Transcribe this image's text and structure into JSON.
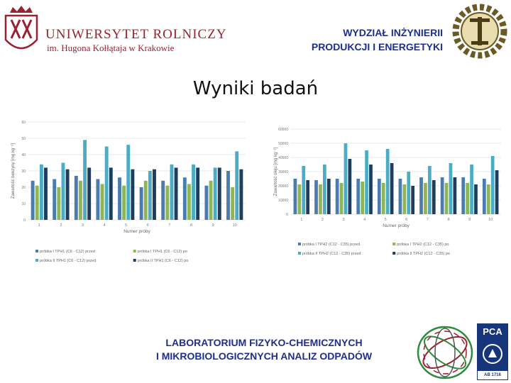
{
  "header": {
    "university_name": "UNIWERSYTET ROLNICZY",
    "university_sub": "im. Hugona Kołłątaja w Krakowie",
    "faculty_line1": "WYDZIAŁ INŻYNIERII",
    "faculty_line2": "PRODUKCJI I ENERGETYKI"
  },
  "title": "Wyniki badań",
  "footer": {
    "lab_line1": "LABORATORIUM FIZYKO-CHEMICZNYCH",
    "lab_line2": "I MIKROBIOLOGICZNYCH ANALIZ ODPADÓW",
    "pca_label": "PCA",
    "pca_number": "AB 1716"
  },
  "colors": {
    "series1": "#4a7cb0",
    "series2": "#8fb654",
    "series3": "#4bacc6",
    "series4": "#1f3e5e",
    "accent_red": "#9a2230",
    "accent_blue": "#1e2f8a"
  },
  "chart_data": [
    {
      "type": "bar",
      "categories": [
        "1",
        "2",
        "3",
        "4",
        "5",
        "6",
        "7",
        "8",
        "9",
        "10"
      ],
      "xlabel": "Numer próby",
      "ylabel": "Zawartość benzyny [mg kg⁻¹]",
      "ylim": [
        0,
        60
      ],
      "yticks": [
        0,
        10,
        20,
        30,
        40,
        50,
        60
      ],
      "grid": true,
      "legend": "bottom",
      "series": [
        {
          "name": "próbka I TPH1 (C6 - C12) przed",
          "values": [
            24,
            25,
            27,
            25,
            26,
            20,
            24,
            26,
            21,
            30
          ]
        },
        {
          "name": "próbka I TPH1 (C6 - C12) po",
          "values": [
            21,
            20,
            24,
            22,
            21,
            24,
            21,
            22,
            24,
            20
          ]
        },
        {
          "name": "próbka II TPH1 (C6 - C12) przed",
          "values": [
            34,
            35,
            49,
            45,
            46,
            30,
            34,
            34,
            32,
            42
          ]
        },
        {
          "name": "próbka II TPH1 (C6 - C12) po",
          "values": [
            32,
            31,
            32,
            32,
            31,
            31,
            32,
            32,
            32,
            31
          ]
        }
      ]
    },
    {
      "type": "bar",
      "categories": [
        "1",
        "2",
        "3",
        "4",
        "5",
        "6",
        "7",
        "8",
        "9",
        "10"
      ],
      "xlabel": "Numer próby",
      "ylabel": "Zawartość oleju [mg kg⁻¹]",
      "ylim": [
        0,
        60000
      ],
      "yticks": [
        0,
        10000,
        20000,
        30000,
        40000,
        50000,
        60000
      ],
      "grid": true,
      "legend": "bottom",
      "series": [
        {
          "name": "próbka I TPH2 (C12 - C35) przed",
          "values": [
            25000,
            24000,
            25000,
            25000,
            25000,
            25000,
            26000,
            26000,
            26000,
            25000
          ]
        },
        {
          "name": "próbka I TPH2 (C12 - C35) po",
          "values": [
            21000,
            21000,
            22000,
            23000,
            22000,
            21000,
            22000,
            22000,
            22000,
            21000
          ]
        },
        {
          "name": "próbka II TPH2 (C12 - C35) przed",
          "values": [
            34000,
            35000,
            50000,
            45000,
            46000,
            30000,
            34000,
            36000,
            35000,
            41000
          ]
        },
        {
          "name": "próbka II TPH2 (C12 - C35) po",
          "values": [
            24000,
            25000,
            39000,
            35000,
            36000,
            20000,
            24000,
            26000,
            21000,
            31000
          ]
        }
      ]
    }
  ]
}
